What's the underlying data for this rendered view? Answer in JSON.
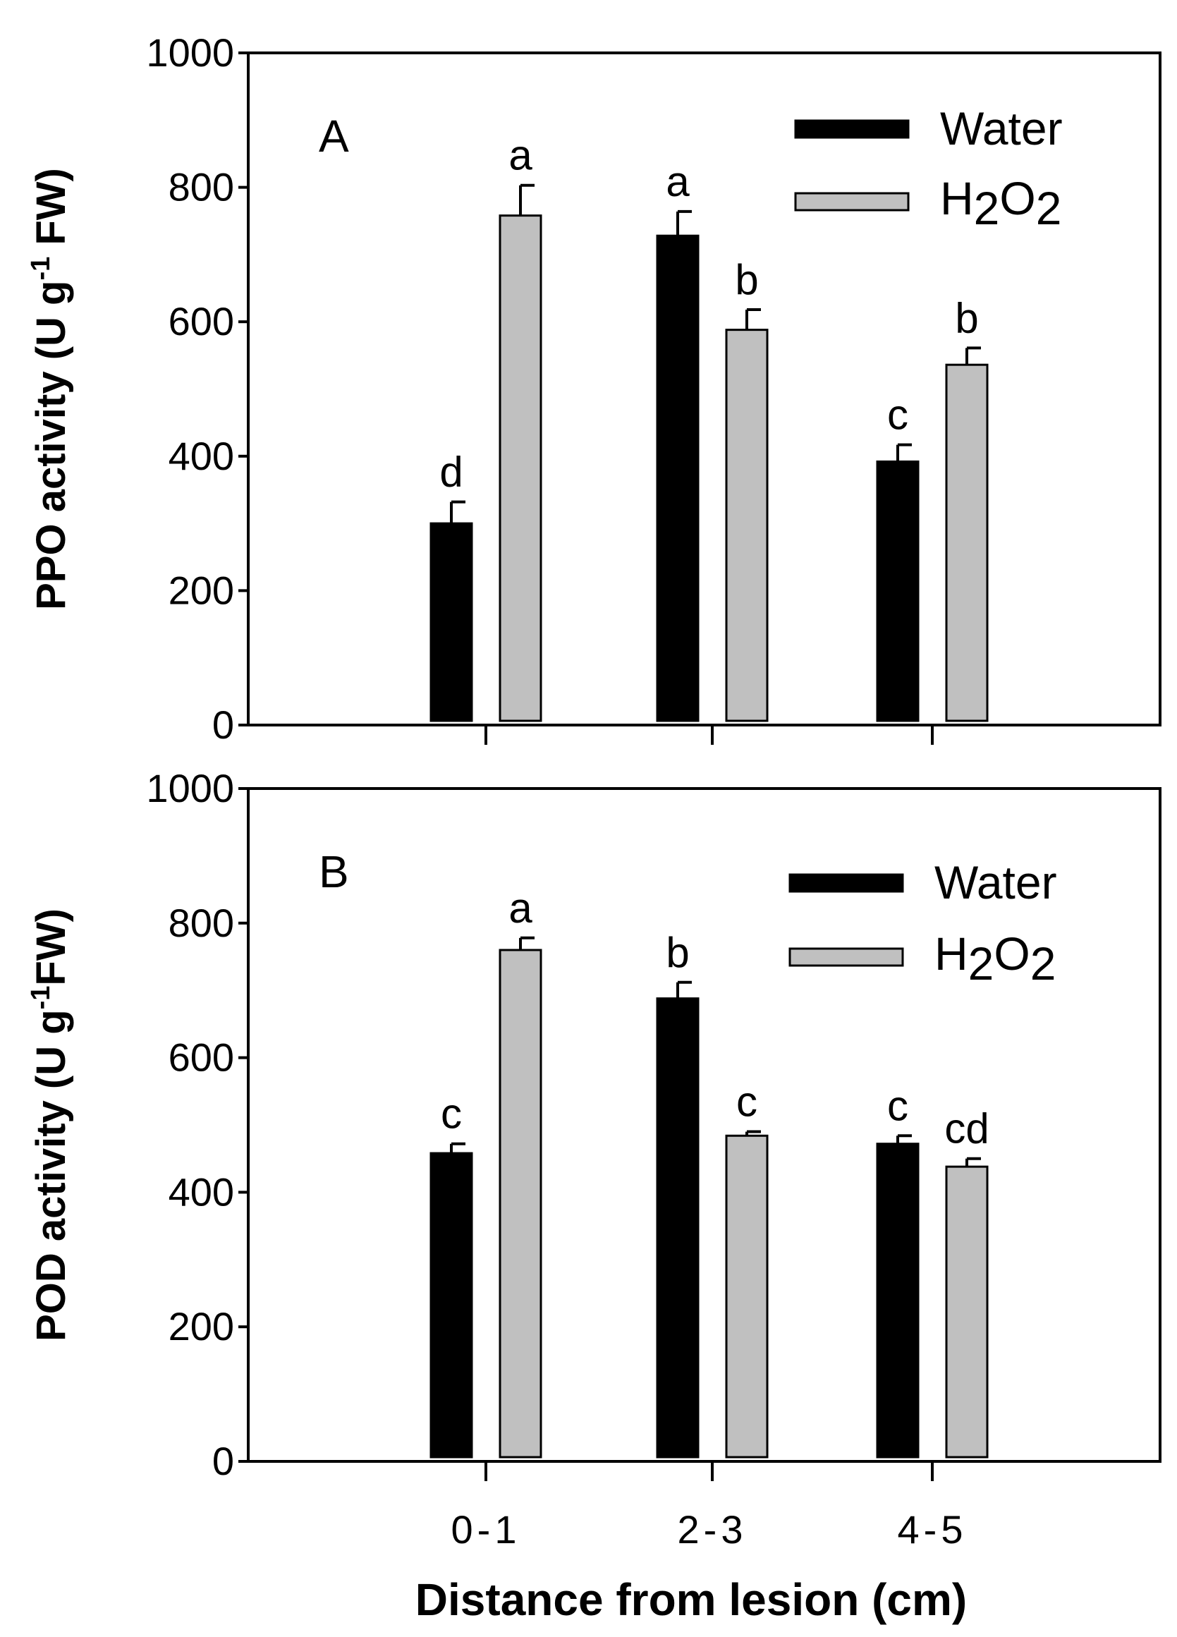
{
  "colors": {
    "water": "#000000",
    "h2o2": "#c0c0c0",
    "axis": "#000000"
  },
  "categories": [
    "0-1",
    "2-3",
    "4-5"
  ],
  "xlabel": "Distance from lesion (cm)",
  "chart_data": [
    {
      "type": "bar",
      "panel_label": "A",
      "ylabel": "PPO activity (U g-1 FW)",
      "ylabel_parts": {
        "main": "PPO activity  (U g",
        "superscript": "-1",
        "tail": " FW)"
      },
      "ylim": [
        0,
        1000
      ],
      "yticks": [
        0,
        200,
        400,
        600,
        800,
        1000
      ],
      "categories": [
        "0-1",
        "2-3",
        "4-5"
      ],
      "legend": {
        "water": "Water",
        "h2o2": "H2O2",
        "position": "top-right"
      },
      "series": [
        {
          "name": "Water",
          "key": "water",
          "values": [
            300,
            728,
            392
          ],
          "errors": [
            32,
            36,
            25
          ],
          "letters": [
            "d",
            "a",
            "c"
          ]
        },
        {
          "name": "H2O2",
          "key": "h2o2",
          "values": [
            758,
            588,
            536
          ],
          "errors": [
            45,
            30,
            25
          ],
          "letters": [
            "a",
            "b",
            "b"
          ]
        }
      ]
    },
    {
      "type": "bar",
      "panel_label": "B",
      "ylabel": "POD activity (U g-1 FW)",
      "ylabel_parts": {
        "main": "POD activity (U g",
        "superscript": "-1",
        "tail": "FW)"
      },
      "ylim": [
        0,
        1000
      ],
      "yticks": [
        0,
        200,
        400,
        600,
        800,
        1000
      ],
      "categories": [
        "0-1",
        "2-3",
        "4-5"
      ],
      "legend": {
        "water": "Water",
        "h2o2": "H2O2",
        "position": "top-right"
      },
      "series": [
        {
          "name": "Water",
          "key": "water",
          "values": [
            458,
            688,
            472
          ],
          "errors": [
            14,
            24,
            12
          ],
          "letters": [
            "c",
            "b",
            "c"
          ]
        },
        {
          "name": "H2O2",
          "key": "h2o2",
          "values": [
            760,
            484,
            438
          ],
          "errors": [
            18,
            6,
            12
          ],
          "letters": [
            "a",
            "c",
            "cd"
          ]
        }
      ]
    }
  ]
}
